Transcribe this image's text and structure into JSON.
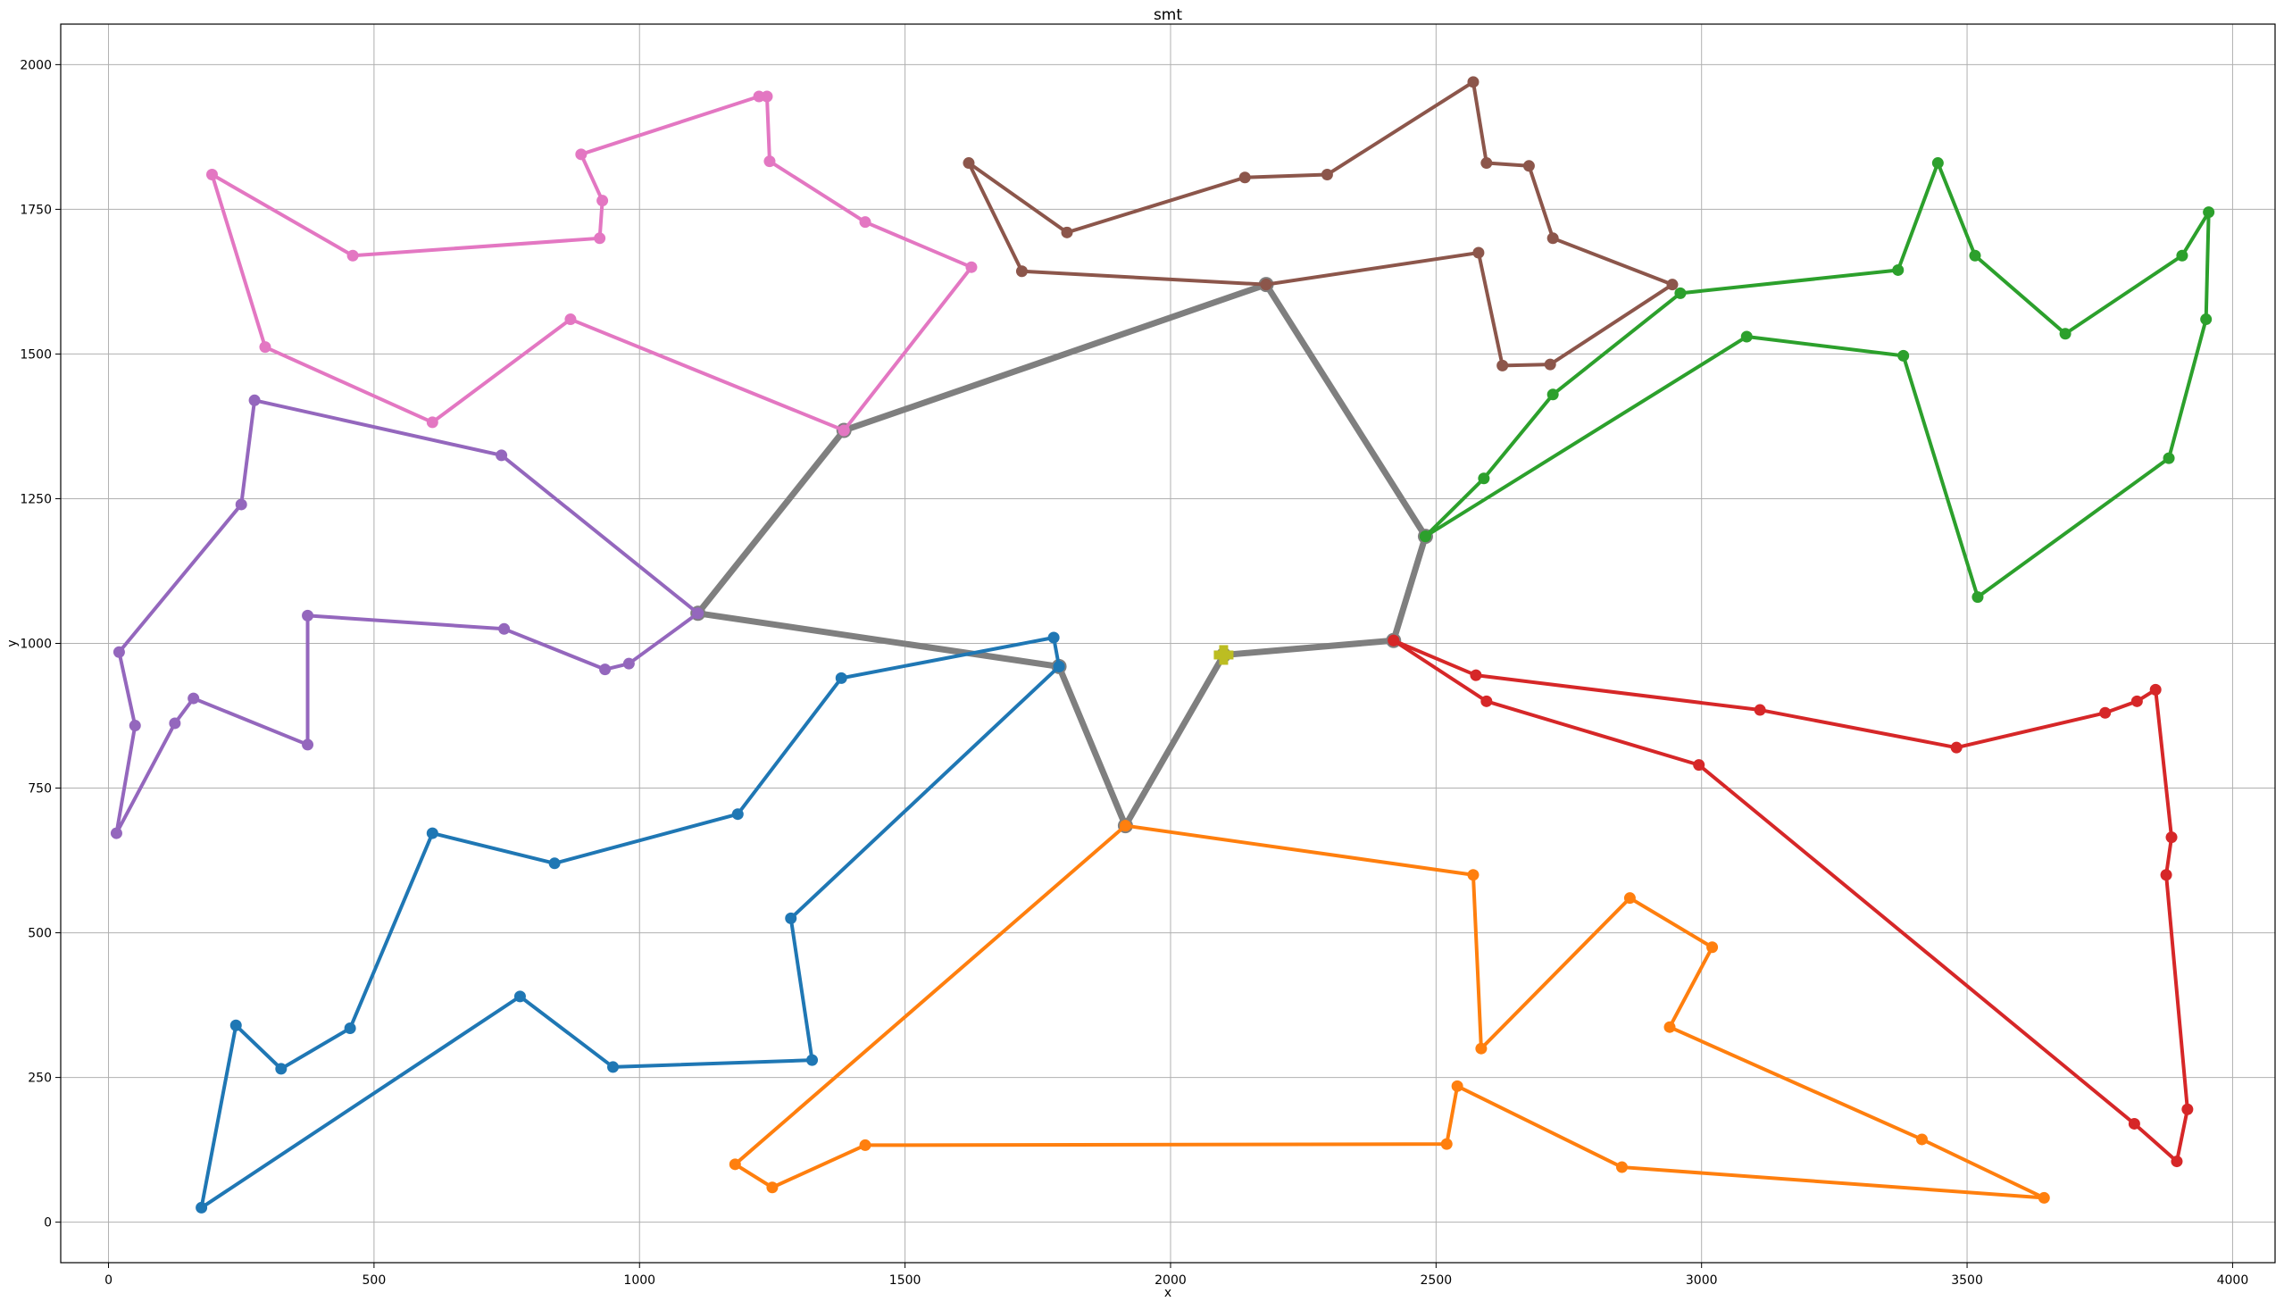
{
  "chart_data": {
    "type": "line",
    "title": "smt",
    "xlabel": "x",
    "ylabel": "y",
    "xlim": [
      -90,
      4080
    ],
    "ylim": [
      -70,
      2070
    ],
    "xticks": [
      0,
      500,
      1000,
      1500,
      2000,
      2500,
      3000,
      3500,
      4000
    ],
    "yticks": [
      0,
      250,
      500,
      750,
      1000,
      1250,
      1500,
      1750,
      2000
    ],
    "grid": true,
    "series": [
      {
        "color": "#1f77b4",
        "points": [
          [
            1790,
            960
          ],
          [
            1780,
            1010
          ],
          [
            1380,
            940
          ],
          [
            1185,
            705
          ],
          [
            840,
            620
          ],
          [
            610,
            672
          ],
          [
            455,
            335
          ],
          [
            325,
            265
          ],
          [
            240,
            340
          ],
          [
            175,
            25
          ],
          [
            775,
            390
          ],
          [
            950,
            268
          ],
          [
            1325,
            280
          ],
          [
            1285,
            525
          ],
          [
            1790,
            960
          ]
        ]
      },
      {
        "color": "#ff7f0e",
        "points": [
          [
            1915,
            685
          ],
          [
            2570,
            600
          ],
          [
            2585,
            300
          ],
          [
            2865,
            560
          ],
          [
            3020,
            475
          ],
          [
            2940,
            337
          ],
          [
            3415,
            143
          ],
          [
            3645,
            42
          ],
          [
            2850,
            95
          ],
          [
            2540,
            235
          ],
          [
            2520,
            135
          ],
          [
            1425,
            133
          ],
          [
            1250,
            60
          ],
          [
            1180,
            100
          ],
          [
            1915,
            685
          ]
        ]
      },
      {
        "color": "#2ca02c",
        "points": [
          [
            2480,
            1185
          ],
          [
            2590,
            1285
          ],
          [
            2720,
            1430
          ],
          [
            2960,
            1605
          ],
          [
            3370,
            1645
          ],
          [
            3445,
            1830
          ],
          [
            3515,
            1670
          ],
          [
            3685,
            1535
          ],
          [
            3905,
            1670
          ],
          [
            3955,
            1745
          ],
          [
            3950,
            1560
          ],
          [
            3880,
            1320
          ],
          [
            3520,
            1080
          ],
          [
            3380,
            1497
          ],
          [
            3085,
            1530
          ],
          [
            2480,
            1185
          ]
        ]
      },
      {
        "color": "#d62728",
        "points": [
          [
            2420,
            1005
          ],
          [
            2575,
            945
          ],
          [
            3110,
            885
          ],
          [
            3480,
            820
          ],
          [
            3760,
            880
          ],
          [
            3820,
            900
          ],
          [
            3855,
            920
          ],
          [
            3885,
            665
          ],
          [
            3875,
            600
          ],
          [
            3915,
            195
          ],
          [
            3895,
            105
          ],
          [
            3815,
            170
          ],
          [
            2995,
            790
          ],
          [
            2595,
            900
          ],
          [
            2420,
            1005
          ]
        ]
      },
      {
        "color": "#9467bd",
        "points": [
          [
            1110,
            1052
          ],
          [
            740,
            1325
          ],
          [
            275,
            1420
          ],
          [
            250,
            1240
          ],
          [
            20,
            985
          ],
          [
            50,
            858
          ],
          [
            15,
            672
          ],
          [
            125,
            862
          ],
          [
            160,
            905
          ],
          [
            375,
            825
          ],
          [
            375,
            1048
          ],
          [
            745,
            1025
          ],
          [
            935,
            955
          ],
          [
            980,
            965
          ],
          [
            1110,
            1052
          ]
        ]
      },
      {
        "color": "#8c564b",
        "points": [
          [
            2180,
            1620
          ],
          [
            1720,
            1643
          ],
          [
            1620,
            1830
          ],
          [
            1805,
            1710
          ],
          [
            2140,
            1805
          ],
          [
            2295,
            1810
          ],
          [
            2570,
            1970
          ],
          [
            2595,
            1830
          ],
          [
            2675,
            1825
          ],
          [
            2720,
            1700
          ],
          [
            2945,
            1620
          ],
          [
            2715,
            1482
          ],
          [
            2625,
            1480
          ],
          [
            2580,
            1675
          ],
          [
            2180,
            1620
          ]
        ]
      },
      {
        "color": "#e377c2",
        "points": [
          [
            1385,
            1368
          ],
          [
            1625,
            1650
          ],
          [
            1425,
            1728
          ],
          [
            1245,
            1833
          ],
          [
            1240,
            1945
          ],
          [
            1225,
            1945
          ],
          [
            890,
            1845
          ],
          [
            930,
            1765
          ],
          [
            925,
            1700
          ],
          [
            460,
            1670
          ],
          [
            195,
            1810
          ],
          [
            295,
            1512
          ],
          [
            610,
            1382
          ],
          [
            870,
            1560
          ],
          [
            1385,
            1368
          ]
        ]
      }
    ],
    "tree_edges": {
      "color": "#7f7f7f",
      "edges": [
        [
          [
            1385,
            1368
          ],
          [
            2180,
            1620
          ]
        ],
        [
          [
            1385,
            1368
          ],
          [
            1110,
            1052
          ]
        ],
        [
          [
            1110,
            1052
          ],
          [
            1790,
            960
          ]
        ],
        [
          [
            1790,
            960
          ],
          [
            1915,
            685
          ]
        ],
        [
          [
            1915,
            685
          ],
          [
            2100,
            980
          ]
        ],
        [
          [
            2100,
            980
          ],
          [
            2420,
            1005
          ]
        ],
        [
          [
            2420,
            1005
          ],
          [
            2480,
            1185
          ]
        ],
        [
          [
            2480,
            1185
          ],
          [
            2180,
            1620
          ]
        ]
      ]
    },
    "source_point": {
      "color": "#bcbd22",
      "x": 2100,
      "y": 980
    }
  }
}
